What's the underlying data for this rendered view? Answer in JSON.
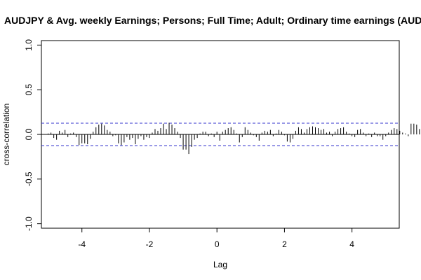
{
  "chart_data": {
    "type": "bar",
    "title": "AUDJPY & Avg. weekly Earnings; Persons; Full Time; Adult; Ordinary time earnings (AUD)",
    "xlabel": "Lag",
    "ylabel": "cross-correlation",
    "xlim": [
      -5.2,
      5.4
    ],
    "ylim": [
      -1.05,
      1.05
    ],
    "x_ticks": [
      -4,
      -2,
      0,
      2,
      4
    ],
    "x_tick_labels": [
      "-4",
      "-2",
      "0",
      "2",
      "4"
    ],
    "y_ticks": [
      -1.0,
      -0.5,
      0.0,
      0.5,
      1.0
    ],
    "y_tick_labels": [
      "-1.0",
      "-0.5",
      "0.0",
      "0.5",
      "1.0"
    ],
    "confidence_bound": 0.125,
    "x_start": -5.0,
    "x_step": 0.08333,
    "values": [
      0.01,
      0.02,
      -0.04,
      -0.06,
      0.04,
      0.02,
      0.05,
      -0.03,
      0.01,
      0.02,
      -0.03,
      -0.12,
      -0.1,
      -0.1,
      -0.11,
      -0.05,
      0.03,
      0.08,
      0.11,
      0.12,
      0.1,
      0.05,
      0.03,
      -0.02,
      -0.01,
      -0.1,
      -0.12,
      -0.09,
      -0.03,
      -0.06,
      -0.04,
      -0.11,
      -0.05,
      -0.02,
      -0.06,
      -0.03,
      -0.04,
      0.02,
      0.06,
      0.04,
      0.07,
      0.12,
      0.06,
      0.13,
      0.11,
      0.07,
      0.03,
      -0.04,
      -0.17,
      -0.17,
      -0.22,
      -0.14,
      -0.06,
      -0.04,
      0.01,
      0.03,
      0.03,
      -0.02,
      0.01,
      -0.03,
      0.03,
      -0.07,
      0.03,
      0.05,
      0.07,
      0.08,
      0.05,
      0.01,
      -0.09,
      -0.03,
      0.08,
      0.05,
      0.02,
      -0.01,
      -0.03,
      -0.07,
      0.02,
      0.04,
      0.03,
      0.05,
      -0.02,
      0.01,
      0.05,
      0.03,
      -0.01,
      -0.08,
      -0.09,
      -0.05,
      0.04,
      0.08,
      0.06,
      0.02,
      0.06,
      0.08,
      0.09,
      0.08,
      0.07,
      0.05,
      0.06,
      0.02,
      0.03,
      -0.02,
      0.03,
      0.06,
      0.07,
      0.08,
      0.03,
      0.01,
      -0.02,
      -0.03,
      0.05,
      0.06,
      0.02,
      -0.02,
      0.01,
      -0.03,
      0.02,
      -0.02,
      -0.02,
      -0.06,
      -0.02,
      0.02,
      0.05,
      0.07,
      0.06,
      0.04,
      0.02,
      0.01,
      -0.02,
      0.12,
      0.12,
      0.11,
      0.06,
      0.03,
      0.01,
      -0.04,
      -0.05,
      -0.07,
      0.02,
      0.03,
      0.02
    ]
  }
}
